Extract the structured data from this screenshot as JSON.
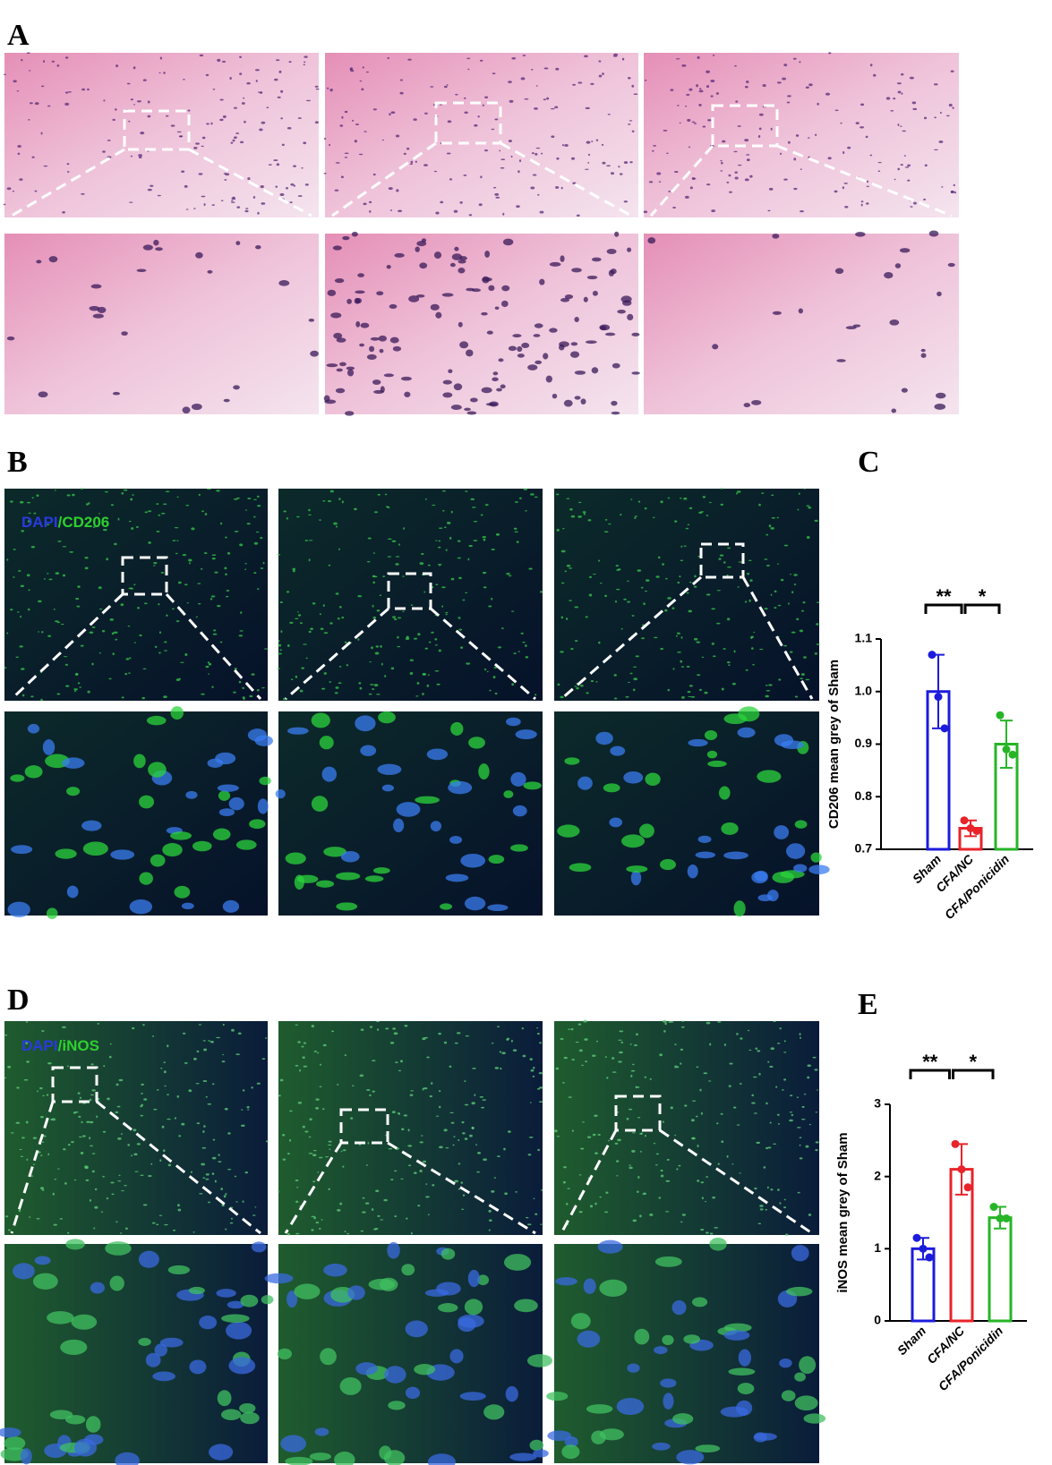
{
  "panels": {
    "a": "A",
    "b": "B",
    "c": "C",
    "d": "D",
    "e": "E"
  },
  "stains": {
    "cd206": {
      "dapi": "DAPI",
      "marker": "/CD206"
    },
    "inos": {
      "dapi": "DAPI",
      "marker": "/iNOS"
    }
  },
  "chart_data": [
    {
      "type": "bar",
      "y_label": "CD206 mean grey of Sham",
      "categories": [
        "Sham",
        "CFA/NC",
        "CFA/Ponicidin"
      ],
      "values": [
        1.0,
        0.74,
        0.9
      ],
      "errors": [
        0.07,
        0.015,
        0.045
      ],
      "points": [
        [
          1.07,
          0.99,
          0.93
        ],
        [
          0.755,
          0.74,
          0.735
        ],
        [
          0.955,
          0.89,
          0.88
        ]
      ],
      "colors": [
        "#1c1cdc",
        "#e8232a",
        "#27b527"
      ],
      "ylim": [
        0.7,
        1.1
      ],
      "yticks": [
        0.7,
        0.8,
        0.9,
        {
          "value": 1.0,
          "label": "1.0"
        },
        1.1
      ],
      "annotations": [
        "**",
        "*"
      ]
    },
    {
      "type": "bar",
      "y_label": "iNOS mean grey of Sham",
      "categories": [
        "Sham",
        "CFA/NC",
        "CFA/Ponicidin"
      ],
      "values": [
        1.0,
        2.1,
        1.43
      ],
      "errors": [
        0.15,
        0.35,
        0.15
      ],
      "points": [
        [
          1.15,
          1.0,
          0.88
        ],
        [
          2.45,
          2.1,
          1.85
        ],
        [
          1.58,
          1.42,
          1.42
        ]
      ],
      "colors": [
        "#1c1cdc",
        "#e8232a",
        "#27b527"
      ],
      "ylim": [
        0,
        3
      ],
      "yticks": [
        0,
        1,
        2,
        3
      ],
      "annotations": [
        "**",
        "*"
      ]
    }
  ]
}
